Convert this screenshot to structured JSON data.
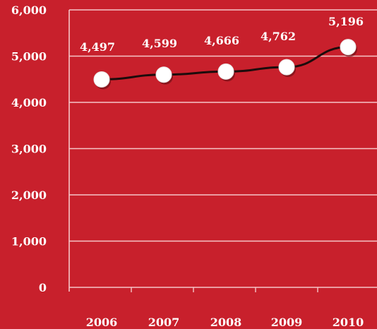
{
  "chart_data": {
    "type": "line",
    "categories": [
      "2006",
      "2007",
      "2008",
      "2009",
      "2010"
    ],
    "values": [
      4497,
      4599,
      4666,
      4762,
      5196
    ],
    "value_labels": [
      "4,497",
      "4,599",
      "4,666",
      "4,762",
      "5,196"
    ],
    "y_ticks": [
      0,
      1000,
      2000,
      3000,
      4000,
      5000,
      6000
    ],
    "y_tick_labels": [
      "0",
      "1,000",
      "2,000",
      "3,000",
      "4,000",
      "5,000",
      "6,000"
    ],
    "ylim": [
      0,
      6000
    ],
    "grid": true,
    "colors": {
      "background": "#c8202c",
      "gridline": "#f6c6c8",
      "line": "#1c0c0c",
      "marker_fill": "#ffffff",
      "text": "#ffffff"
    }
  }
}
